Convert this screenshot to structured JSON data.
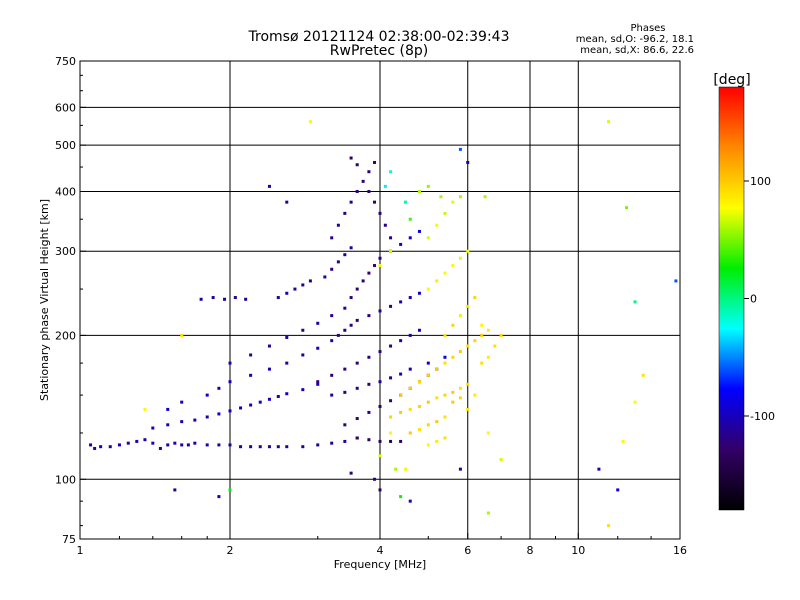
{
  "chart_data": {
    "type": "scatter",
    "title": "Tromsø 20121124 02:38:00-02:39:43",
    "subtitle": "RwPretec (8p)",
    "xlabel": "Frequency [MHz]",
    "ylabel": "Stationary phase Virtual Height [km]",
    "x_scale": "log",
    "y_scale": "log",
    "xlim": [
      1,
      16
    ],
    "ylim": [
      75,
      750
    ],
    "x_ticks": [
      1,
      2,
      4,
      6,
      8,
      10,
      16
    ],
    "y_ticks": [
      75,
      100,
      200,
      300,
      400,
      500,
      600,
      750
    ],
    "x_gridlines": [
      2,
      4,
      6,
      8,
      10
    ],
    "y_gridlines": [
      100,
      200,
      300,
      400,
      500,
      600
    ],
    "grid": true,
    "phases_box": {
      "title": "Phases",
      "line_o": "mean, sd,O: -96.2, 18.1",
      "line_x": "mean, sd,X: 86.6, 22.6"
    },
    "colorbar": {
      "label": "[deg]",
      "range": [
        -180,
        180
      ],
      "ticks": [
        100,
        0,
        -100
      ],
      "colors": [
        "#ff0000",
        "#ff8800",
        "#ffff00",
        "#00ee00",
        "#00ffff",
        "#0000ff",
        "#330066",
        "#000000"
      ]
    },
    "series": [
      {
        "points": [
          [
            1.05,
            118,
            -100
          ],
          [
            1.07,
            116,
            -100
          ],
          [
            1.1,
            117,
            -90
          ],
          [
            1.15,
            117,
            -110
          ],
          [
            1.2,
            118,
            -100
          ],
          [
            1.25,
            119,
            -110
          ],
          [
            1.3,
            120,
            -100
          ],
          [
            1.35,
            121,
            -110
          ],
          [
            1.4,
            119,
            -100
          ],
          [
            1.45,
            116,
            -105
          ],
          [
            1.5,
            118,
            -110
          ],
          [
            1.55,
            119,
            -100
          ],
          [
            1.6,
            118,
            -110
          ],
          [
            1.65,
            118,
            -105
          ],
          [
            1.7,
            119,
            -110
          ],
          [
            1.8,
            118,
            -110
          ],
          [
            1.9,
            118,
            -115
          ],
          [
            2.0,
            118,
            -110
          ],
          [
            2.1,
            117,
            -110
          ],
          [
            2.2,
            117,
            -115
          ],
          [
            2.3,
            117,
            -110
          ],
          [
            2.4,
            117,
            -115
          ],
          [
            2.5,
            117,
            -110
          ],
          [
            2.6,
            117,
            -115
          ],
          [
            2.8,
            117,
            -110
          ],
          [
            3.0,
            118,
            -110
          ],
          [
            3.2,
            119,
            -115
          ],
          [
            3.4,
            120,
            -110
          ],
          [
            3.6,
            122,
            -115
          ],
          [
            1.4,
            128,
            -100
          ],
          [
            1.5,
            130,
            -105
          ],
          [
            1.6,
            132,
            -100
          ],
          [
            1.7,
            133,
            -100
          ],
          [
            1.8,
            135,
            -105
          ],
          [
            1.9,
            137,
            -100
          ],
          [
            2.0,
            139,
            -100
          ],
          [
            2.1,
            141,
            -100
          ],
          [
            2.2,
            143,
            -95
          ],
          [
            2.3,
            145,
            -100
          ],
          [
            2.4,
            147,
            -95
          ],
          [
            2.5,
            149,
            -100
          ],
          [
            2.6,
            151,
            -95
          ],
          [
            2.8,
            154,
            -100
          ],
          [
            3.0,
            158,
            -95
          ],
          [
            1.5,
            140,
            -95
          ],
          [
            1.6,
            145,
            -100
          ],
          [
            1.8,
            150,
            -100
          ],
          [
            1.9,
            155,
            -105
          ],
          [
            2.0,
            160,
            -100
          ],
          [
            2.2,
            165,
            -110
          ],
          [
            2.4,
            170,
            -100
          ],
          [
            2.6,
            175,
            -110
          ],
          [
            2.8,
            182,
            -110
          ],
          [
            3.0,
            188,
            -105
          ],
          [
            3.2,
            195,
            -110
          ],
          [
            2.0,
            175,
            -110
          ],
          [
            2.2,
            182,
            -110
          ],
          [
            2.4,
            190,
            -115
          ],
          [
            2.6,
            198,
            -110
          ],
          [
            2.8,
            205,
            -115
          ],
          [
            3.0,
            212,
            -110
          ],
          [
            3.2,
            220,
            -115
          ],
          [
            3.4,
            228,
            -110
          ],
          [
            1.75,
            238,
            -110
          ],
          [
            1.85,
            240,
            -110
          ],
          [
            1.95,
            238,
            -110
          ],
          [
            2.05,
            240,
            -110
          ],
          [
            2.15,
            238,
            -110
          ],
          [
            2.5,
            240,
            -110
          ],
          [
            2.6,
            245,
            -105
          ],
          [
            2.7,
            250,
            -110
          ],
          [
            2.8,
            255,
            -105
          ],
          [
            2.9,
            260,
            -110
          ],
          [
            3.1,
            265,
            -110
          ],
          [
            3.2,
            275,
            -120
          ],
          [
            3.3,
            285,
            -115
          ],
          [
            3.4,
            295,
            -120
          ],
          [
            3.5,
            305,
            -115
          ],
          [
            3.2,
            320,
            -120
          ],
          [
            3.3,
            340,
            -115
          ],
          [
            3.4,
            360,
            -120
          ],
          [
            3.5,
            380,
            -115
          ],
          [
            3.6,
            400,
            -120
          ],
          [
            3.7,
            420,
            -120
          ],
          [
            3.8,
            440,
            -125
          ],
          [
            3.9,
            460,
            -120
          ],
          [
            3.5,
            470,
            -130
          ],
          [
            3.6,
            455,
            -125
          ],
          [
            3.8,
            400,
            -120
          ],
          [
            3.9,
            380,
            -125
          ],
          [
            4.0,
            360,
            -120
          ],
          [
            4.1,
            340,
            -115
          ],
          [
            4.2,
            320,
            -110
          ],
          [
            3.5,
            240,
            -120
          ],
          [
            3.6,
            250,
            -125
          ],
          [
            3.7,
            260,
            -120
          ],
          [
            3.8,
            270,
            -125
          ],
          [
            3.9,
            280,
            -120
          ],
          [
            4.0,
            290,
            -115
          ],
          [
            4.2,
            300,
            -110
          ],
          [
            4.4,
            310,
            -100
          ],
          [
            4.6,
            320,
            -95
          ],
          [
            4.8,
            330,
            -90
          ],
          [
            3.3,
            200,
            -120
          ],
          [
            3.4,
            205,
            -125
          ],
          [
            3.5,
            210,
            -120
          ],
          [
            3.6,
            215,
            -125
          ],
          [
            3.8,
            220,
            -120
          ],
          [
            4.0,
            225,
            -115
          ],
          [
            4.2,
            230,
            -110
          ],
          [
            4.4,
            235,
            -105
          ],
          [
            4.6,
            240,
            -100
          ],
          [
            4.8,
            245,
            -95
          ],
          [
            3.0,
            160,
            -120
          ],
          [
            3.2,
            165,
            -125
          ],
          [
            3.4,
            170,
            -120
          ],
          [
            3.6,
            175,
            -125
          ],
          [
            3.8,
            180,
            -120
          ],
          [
            4.0,
            185,
            -120
          ],
          [
            4.2,
            190,
            -115
          ],
          [
            4.4,
            195,
            -110
          ],
          [
            4.6,
            200,
            -105
          ],
          [
            4.8,
            205,
            -100
          ],
          [
            3.4,
            130,
            -120
          ],
          [
            3.6,
            134,
            -125
          ],
          [
            3.8,
            138,
            -120
          ],
          [
            4.0,
            142,
            -120
          ],
          [
            4.2,
            146,
            -115
          ],
          [
            4.4,
            150,
            -110
          ],
          [
            4.6,
            155,
            -105
          ],
          [
            4.8,
            160,
            -100
          ],
          [
            5.0,
            165,
            -95
          ],
          [
            5.2,
            170,
            -90
          ],
          [
            3.2,
            150,
            -115
          ],
          [
            3.4,
            152,
            -120
          ],
          [
            3.6,
            155,
            -115
          ],
          [
            3.8,
            158,
            -120
          ],
          [
            4.0,
            160,
            -115
          ],
          [
            4.2,
            163,
            -110
          ],
          [
            4.4,
            166,
            -105
          ],
          [
            4.6,
            170,
            -100
          ],
          [
            5.0,
            175,
            -95
          ],
          [
            5.4,
            180,
            -90
          ],
          [
            3.6,
            122,
            -130
          ],
          [
            3.8,
            121,
            -135
          ],
          [
            4.0,
            120,
            -130
          ],
          [
            4.2,
            120,
            -135
          ],
          [
            4.4,
            120,
            -130
          ],
          [
            2.4,
            410,
            -110
          ],
          [
            2.6,
            380,
            -105
          ],
          [
            2.9,
            560,
            80
          ],
          [
            1.6,
            200,
            90
          ],
          [
            1.35,
            140,
            80
          ],
          [
            1.55,
            95,
            -110
          ],
          [
            1.9,
            92,
            -100
          ],
          [
            2.0,
            95,
            20
          ],
          [
            3.5,
            103,
            -120
          ],
          [
            3.9,
            100,
            -110
          ],
          [
            4.0,
            95,
            -130
          ],
          [
            4.4,
            92,
            30
          ],
          [
            4.6,
            90,
            -100
          ],
          [
            5.8,
            105,
            -110
          ]
        ]
      },
      {
        "points": [
          [
            4.2,
            135,
            95
          ],
          [
            4.4,
            138,
            100
          ],
          [
            4.6,
            140,
            90
          ],
          [
            4.8,
            142,
            95
          ],
          [
            5.0,
            145,
            100
          ],
          [
            5.2,
            148,
            90
          ],
          [
            5.4,
            150,
            95
          ],
          [
            5.6,
            152,
            100
          ],
          [
            5.8,
            155,
            90
          ],
          [
            6.0,
            158,
            95
          ],
          [
            4.6,
            125,
            100
          ],
          [
            4.8,
            127,
            90
          ],
          [
            5.0,
            130,
            95
          ],
          [
            5.2,
            132,
            100
          ],
          [
            5.4,
            135,
            90
          ],
          [
            4.4,
            150,
            100
          ],
          [
            4.6,
            155,
            95
          ],
          [
            4.8,
            160,
            90
          ],
          [
            5.0,
            165,
            95
          ],
          [
            5.2,
            170,
            100
          ],
          [
            5.4,
            175,
            90
          ],
          [
            5.6,
            180,
            95
          ],
          [
            5.8,
            185,
            100
          ],
          [
            6.0,
            190,
            90
          ],
          [
            6.2,
            195,
            95
          ],
          [
            6.4,
            200,
            100
          ],
          [
            5.4,
            200,
            90
          ],
          [
            5.6,
            210,
            95
          ],
          [
            5.8,
            220,
            85
          ],
          [
            6.0,
            230,
            90
          ],
          [
            6.2,
            240,
            95
          ],
          [
            6.4,
            210,
            80
          ],
          [
            6.6,
            205,
            85
          ],
          [
            5.0,
            250,
            80
          ],
          [
            5.2,
            260,
            85
          ],
          [
            5.4,
            270,
            75
          ],
          [
            5.6,
            280,
            80
          ],
          [
            5.8,
            290,
            85
          ],
          [
            6.0,
            300,
            75
          ],
          [
            5.0,
            320,
            70
          ],
          [
            5.2,
            340,
            75
          ],
          [
            5.4,
            360,
            65
          ],
          [
            5.6,
            380,
            70
          ],
          [
            5.8,
            390,
            60
          ],
          [
            4.8,
            400,
            60
          ],
          [
            5.0,
            410,
            55
          ],
          [
            5.3,
            390,
            60
          ],
          [
            4.6,
            350,
            40
          ],
          [
            4.2,
            300,
            70
          ],
          [
            4.0,
            280,
            75
          ],
          [
            4.5,
            380,
            -10
          ],
          [
            4.2,
            440,
            -20
          ],
          [
            4.1,
            410,
            -30
          ],
          [
            5.8,
            490,
            -60
          ],
          [
            6.0,
            460,
            -100
          ],
          [
            6.5,
            390,
            60
          ],
          [
            4.2,
            125,
            80
          ],
          [
            4.0,
            112,
            70
          ],
          [
            4.3,
            105,
            60
          ],
          [
            4.5,
            105,
            75
          ],
          [
            6.6,
            125,
            80
          ],
          [
            6.2,
            150,
            85
          ],
          [
            6.4,
            175,
            90
          ],
          [
            6.6,
            180,
            85
          ],
          [
            6.8,
            190,
            90
          ],
          [
            7.0,
            200,
            95
          ],
          [
            5.6,
            145,
            100
          ],
          [
            5.8,
            148,
            95
          ],
          [
            6.0,
            140,
            90
          ],
          [
            5.2,
            120,
            85
          ],
          [
            5.4,
            122,
            90
          ],
          [
            5.0,
            118,
            80
          ],
          [
            6.6,
            85,
            60
          ],
          [
            7.0,
            110,
            70
          ],
          [
            11.5,
            560,
            70
          ],
          [
            12.5,
            370,
            50
          ],
          [
            13.0,
            235,
            0
          ],
          [
            12.3,
            120,
            80
          ],
          [
            11.0,
            105,
            -100
          ],
          [
            12.0,
            95,
            -90
          ],
          [
            11.5,
            80,
            90
          ],
          [
            13.5,
            165,
            90
          ],
          [
            13.0,
            145,
            80
          ],
          [
            15.7,
            260,
            -60
          ]
        ]
      }
    ]
  }
}
